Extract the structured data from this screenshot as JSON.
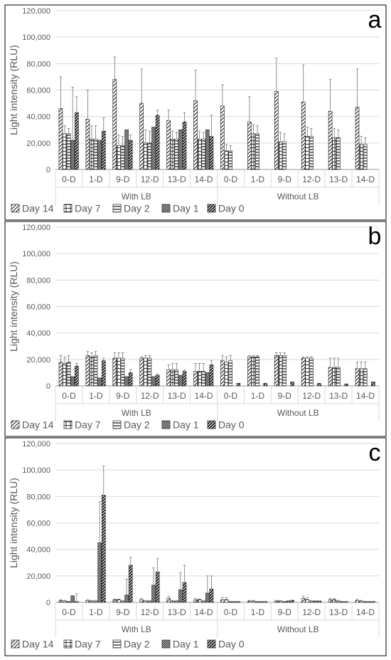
{
  "figure": {
    "series_names": [
      "Day 14",
      "Day 7",
      "Day 2",
      "Day 1",
      "Day 0"
    ],
    "group_labels": [
      "With LB",
      "Without LB"
    ],
    "subcategories": [
      "0-D",
      "1-D",
      "9-D",
      "12-D",
      "13-D",
      "14-D"
    ]
  },
  "chart_data": [
    {
      "type": "bar",
      "panel_letter": "a",
      "ylabel": "Light intensity (RLU)",
      "ylim": [
        0,
        120000
      ],
      "yticks": [
        "0",
        "20,000",
        "40,000",
        "60,000",
        "80,000",
        "100,000",
        "120,000"
      ],
      "categories": [
        "With LB 0-D",
        "With LB 1-D",
        "With LB 9-D",
        "With LB 12-D",
        "With LB 13-D",
        "With LB 14-D",
        "Without LB 0-D",
        "Without LB 1-D",
        "Without LB 9-D",
        "Without LB 12-D",
        "Without LB 13-D",
        "Without LB 14-D"
      ],
      "legend_position": "bottom",
      "grid": true,
      "series": [
        {
          "name": "Day 14",
          "values": [
            46000,
            38000,
            68000,
            50000,
            37000,
            52000,
            48000,
            36000,
            59000,
            51000,
            44000,
            47000
          ],
          "errors": [
            24000,
            22000,
            17000,
            26000,
            8000,
            23000,
            16000,
            19000,
            25000,
            28000,
            24000,
            29000
          ]
        },
        {
          "name": "Day 7",
          "values": [
            27000,
            23000,
            18000,
            20000,
            23000,
            23000,
            14000,
            27000,
            21000,
            25000,
            24000,
            19000
          ],
          "errors": [
            6000,
            10000,
            8000,
            10000,
            6000,
            6000,
            5000,
            7000,
            7000,
            7000,
            7000,
            6000
          ]
        },
        {
          "name": "Day 2",
          "values": [
            27000,
            23000,
            18000,
            20000,
            23000,
            23000,
            14000,
            27000,
            21000,
            25000,
            24000,
            19000
          ],
          "errors": [
            4000,
            10000,
            7000,
            9000,
            5000,
            5000,
            4000,
            6000,
            6000,
            6000,
            6000,
            5000
          ]
        },
        {
          "name": "Day 1",
          "values": [
            22000,
            22000,
            30000,
            32000,
            30000,
            30000,
            0,
            0,
            0,
            0,
            0,
            0
          ],
          "errors": [
            40000,
            0,
            0,
            0,
            0,
            0,
            0,
            0,
            0,
            0,
            0,
            0
          ]
        },
        {
          "name": "Day 0",
          "values": [
            43000,
            29000,
            22000,
            41000,
            36000,
            25000,
            0,
            0,
            0,
            0,
            0,
            0
          ],
          "errors": [
            12000,
            10000,
            4000,
            4000,
            7000,
            16000,
            0,
            0,
            0,
            0,
            0,
            0
          ]
        }
      ]
    },
    {
      "type": "bar",
      "panel_letter": "b",
      "ylabel": "Light intensity (RLU)",
      "ylim": [
        0,
        120000
      ],
      "yticks": [
        "0",
        "20,000",
        "40,000",
        "60,000",
        "80,000",
        "100,000",
        "120,000"
      ],
      "categories": [
        "With LB 0-D",
        "With LB 1-D",
        "With LB 9-D",
        "With LB 12-D",
        "With LB 13-D",
        "With LB 14-D",
        "Without LB 0-D",
        "Without LB 1-D",
        "Without LB 9-D",
        "Without LB 12-D",
        "Without LB 13-D",
        "Without LB 14-D"
      ],
      "legend_position": "bottom",
      "grid": true,
      "series": [
        {
          "name": "Day 14",
          "values": [
            18000,
            23000,
            21000,
            21000,
            12000,
            11000,
            19000,
            22000,
            23000,
            21000,
            14000,
            13000
          ],
          "errors": [
            5000,
            3000,
            4000,
            1000,
            4000,
            6000,
            4000,
            1000,
            2000,
            1000,
            7000,
            5000
          ]
        },
        {
          "name": "Day 7",
          "values": [
            17000,
            22000,
            21000,
            21000,
            12000,
            11000,
            18000,
            22000,
            23000,
            21000,
            14000,
            13000
          ],
          "errors": [
            5000,
            3000,
            4000,
            2000,
            5000,
            6000,
            4000,
            1000,
            2000,
            1000,
            7000,
            5000
          ]
        },
        {
          "name": "Day 2",
          "values": [
            18000,
            23000,
            21000,
            21000,
            12000,
            11000,
            19000,
            22000,
            23000,
            21000,
            14000,
            13000
          ],
          "errors": [
            5000,
            3000,
            4000,
            2000,
            5000,
            6000,
            4000,
            1000,
            2000,
            1000,
            7000,
            5000
          ]
        },
        {
          "name": "Day 1",
          "values": [
            7000,
            6000,
            7000,
            7000,
            8000,
            10000,
            0,
            0,
            0,
            0,
            0,
            0
          ],
          "errors": [
            0,
            0,
            0,
            0,
            0,
            0,
            0,
            0,
            0,
            0,
            0,
            0
          ]
        },
        {
          "name": "Day 0",
          "values": [
            15000,
            19000,
            10000,
            8000,
            11000,
            16000,
            2000,
            2000,
            3000,
            2000,
            1500,
            3000
          ],
          "errors": [
            2000,
            2000,
            2000,
            1000,
            1000,
            3000,
            0,
            0,
            0,
            0,
            0,
            0
          ]
        }
      ]
    },
    {
      "type": "bar",
      "panel_letter": "c",
      "ylabel": "Light intensity (RLU)",
      "ylim": [
        0,
        120000
      ],
      "yticks": [
        "0",
        "20,000",
        "40,000",
        "60,000",
        "80,000",
        "100,000",
        "120,000"
      ],
      "categories": [
        "With LB 0-D",
        "With LB 1-D",
        "With LB 9-D",
        "With LB 12-D",
        "With LB 13-D",
        "With LB 14-D",
        "Without LB 0-D",
        "Without LB 1-D",
        "Without LB 9-D",
        "Without LB 12-D",
        "Without LB 13-D",
        "Without LB 14-D"
      ],
      "legend_position": "bottom",
      "grid": true,
      "series": [
        {
          "name": "Day 14",
          "values": [
            1500,
            1500,
            2000,
            2000,
            3000,
            2000,
            2000,
            1000,
            1000,
            3000,
            2000,
            1500
          ],
          "errors": [
            500,
            500,
            500,
            1000,
            1500,
            1000,
            1500,
            500,
            500,
            1500,
            1000,
            1000
          ]
        },
        {
          "name": "Day 7",
          "values": [
            1000,
            1000,
            2000,
            1000,
            1000,
            2000,
            2000,
            1000,
            1000,
            2000,
            2000,
            1000
          ],
          "errors": [
            500,
            500,
            500,
            500,
            500,
            500,
            1500,
            500,
            500,
            1500,
            1000,
            500
          ]
        },
        {
          "name": "Day 2",
          "values": [
            500,
            1000,
            1000,
            1000,
            1000,
            1000,
            500,
            500,
            500,
            1000,
            1000,
            500
          ],
          "errors": [
            200,
            500,
            500,
            500,
            500,
            500,
            200,
            200,
            200,
            500,
            500,
            200
          ]
        },
        {
          "name": "Day 1",
          "values": [
            5000,
            45000,
            5500,
            13000,
            9500,
            7000,
            500,
            500,
            1000,
            1000,
            500,
            500
          ],
          "errors": [
            0,
            31000,
            12000,
            13000,
            13000,
            13000,
            200,
            200,
            200,
            200,
            200,
            200
          ]
        },
        {
          "name": "Day 0",
          "values": [
            500,
            81000,
            28000,
            23000,
            15000,
            10000,
            500,
            500,
            1500,
            1000,
            500,
            500
          ],
          "errors": [
            6000,
            22000,
            6000,
            10000,
            13000,
            10000,
            200,
            200,
            200,
            200,
            200,
            200
          ]
        }
      ]
    }
  ]
}
